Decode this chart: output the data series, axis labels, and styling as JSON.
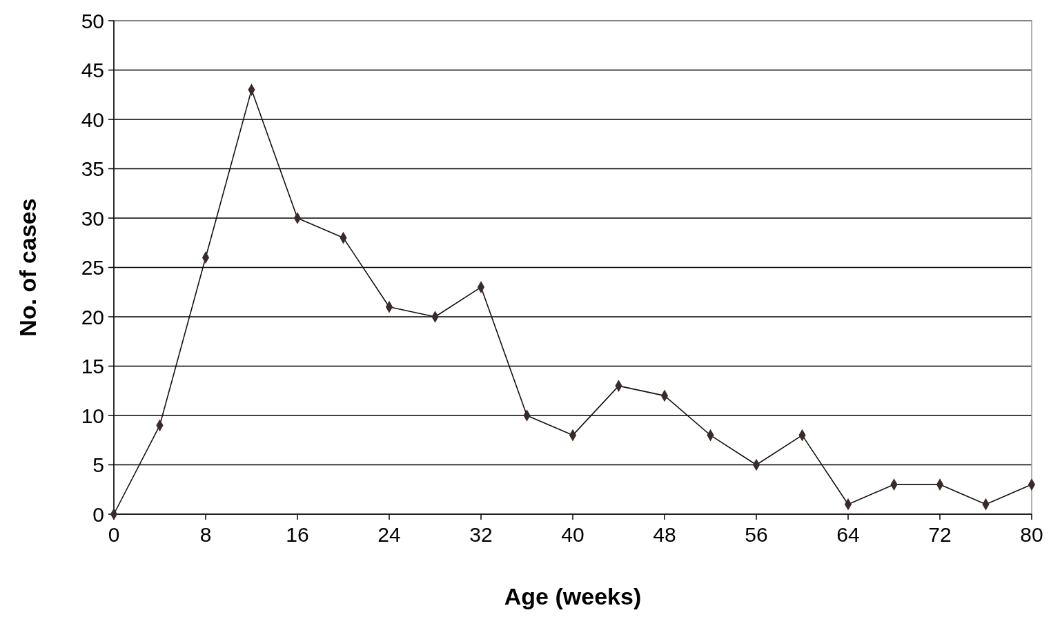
{
  "chart_data": {
    "type": "line",
    "xlabel": "Age (weeks)",
    "ylabel": "No. of cases",
    "x": [
      0,
      4,
      8,
      12,
      16,
      20,
      24,
      28,
      32,
      36,
      40,
      44,
      48,
      52,
      56,
      60,
      64,
      68,
      72,
      76,
      80
    ],
    "series": [
      {
        "color": "#3b2a2a",
        "values": [
          0,
          9,
          26,
          43,
          30,
          28,
          21,
          20,
          23,
          10,
          8,
          13,
          12,
          8,
          5,
          8,
          1,
          3,
          3,
          1,
          3
        ]
      }
    ],
    "xlim": [
      0,
      80
    ],
    "xticks": [
      0,
      8,
      16,
      24,
      32,
      40,
      48,
      56,
      64,
      72,
      80
    ],
    "ylim": [
      0,
      50
    ],
    "yticks": [
      0,
      5,
      10,
      15,
      20,
      25,
      30,
      35,
      40,
      45,
      50
    ],
    "grid": "y",
    "marker": "diamond",
    "line_style": "solid"
  }
}
